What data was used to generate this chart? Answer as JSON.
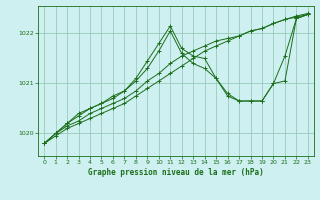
{
  "title": "Graphe pression niveau de la mer (hPa)",
  "bg_color": "#cff0f0",
  "grid_color": "#99ccbb",
  "line_color": "#1a6e1a",
  "xlim": [
    -0.5,
    23.5
  ],
  "ylim": [
    1019.55,
    1022.55
  ],
  "yticks": [
    1020,
    1021,
    1022
  ],
  "xticks": [
    0,
    1,
    2,
    3,
    4,
    5,
    6,
    7,
    8,
    9,
    10,
    11,
    12,
    13,
    14,
    15,
    16,
    17,
    18,
    19,
    20,
    21,
    22,
    23
  ],
  "series": [
    {
      "x": [
        0,
        1,
        2,
        3,
        4,
        5,
        6,
        7,
        8,
        9,
        10,
        11,
        12,
        13,
        14,
        15,
        16,
        17,
        18,
        19,
        20,
        21,
        22,
        23
      ],
      "y": [
        1019.8,
        1019.95,
        1020.1,
        1020.2,
        1020.3,
        1020.4,
        1020.5,
        1020.6,
        1020.75,
        1020.9,
        1021.05,
        1021.2,
        1021.35,
        1021.5,
        1021.65,
        1021.75,
        1021.85,
        1021.95,
        1022.05,
        1022.1,
        1022.2,
        1022.28,
        1022.33,
        1022.38
      ]
    },
    {
      "x": [
        0,
        1,
        2,
        3,
        4,
        5,
        6,
        7,
        8,
        9,
        10,
        11,
        12,
        13,
        14,
        15,
        16,
        17,
        18,
        19,
        20,
        21,
        22,
        23
      ],
      "y": [
        1019.8,
        1020.0,
        1020.15,
        1020.25,
        1020.4,
        1020.5,
        1020.6,
        1020.7,
        1020.85,
        1021.05,
        1021.2,
        1021.4,
        1021.55,
        1021.65,
        1021.75,
        1021.85,
        1021.9,
        1021.95,
        1022.05,
        1022.1,
        1022.2,
        1022.28,
        1022.35,
        1022.4
      ]
    },
    {
      "x": [
        0,
        1,
        2,
        3,
        4,
        5,
        6,
        7,
        8,
        9,
        10,
        11,
        12,
        13,
        14,
        15,
        16,
        17,
        18,
        19,
        20,
        21,
        22,
        23
      ],
      "y": [
        1019.8,
        1020.0,
        1020.2,
        1020.35,
        1020.5,
        1020.6,
        1020.75,
        1020.85,
        1021.05,
        1021.3,
        1021.65,
        1022.05,
        1021.6,
        1021.4,
        1021.3,
        1021.1,
        1020.75,
        1020.65,
        1020.65,
        1020.65,
        1021.0,
        1021.55,
        1022.3,
        1022.38
      ]
    },
    {
      "x": [
        0,
        1,
        2,
        3,
        4,
        5,
        6,
        7,
        8,
        9,
        10,
        11,
        12,
        13,
        14,
        15,
        16,
        17,
        18,
        19,
        20,
        21,
        22,
        23
      ],
      "y": [
        1019.8,
        1020.0,
        1020.2,
        1020.4,
        1020.5,
        1020.6,
        1020.7,
        1020.85,
        1021.1,
        1021.45,
        1021.8,
        1022.15,
        1021.7,
        1021.55,
        1021.5,
        1021.1,
        1020.8,
        1020.65,
        1020.65,
        1020.65,
        1021.0,
        1021.05,
        1022.3,
        1022.38
      ]
    }
  ]
}
